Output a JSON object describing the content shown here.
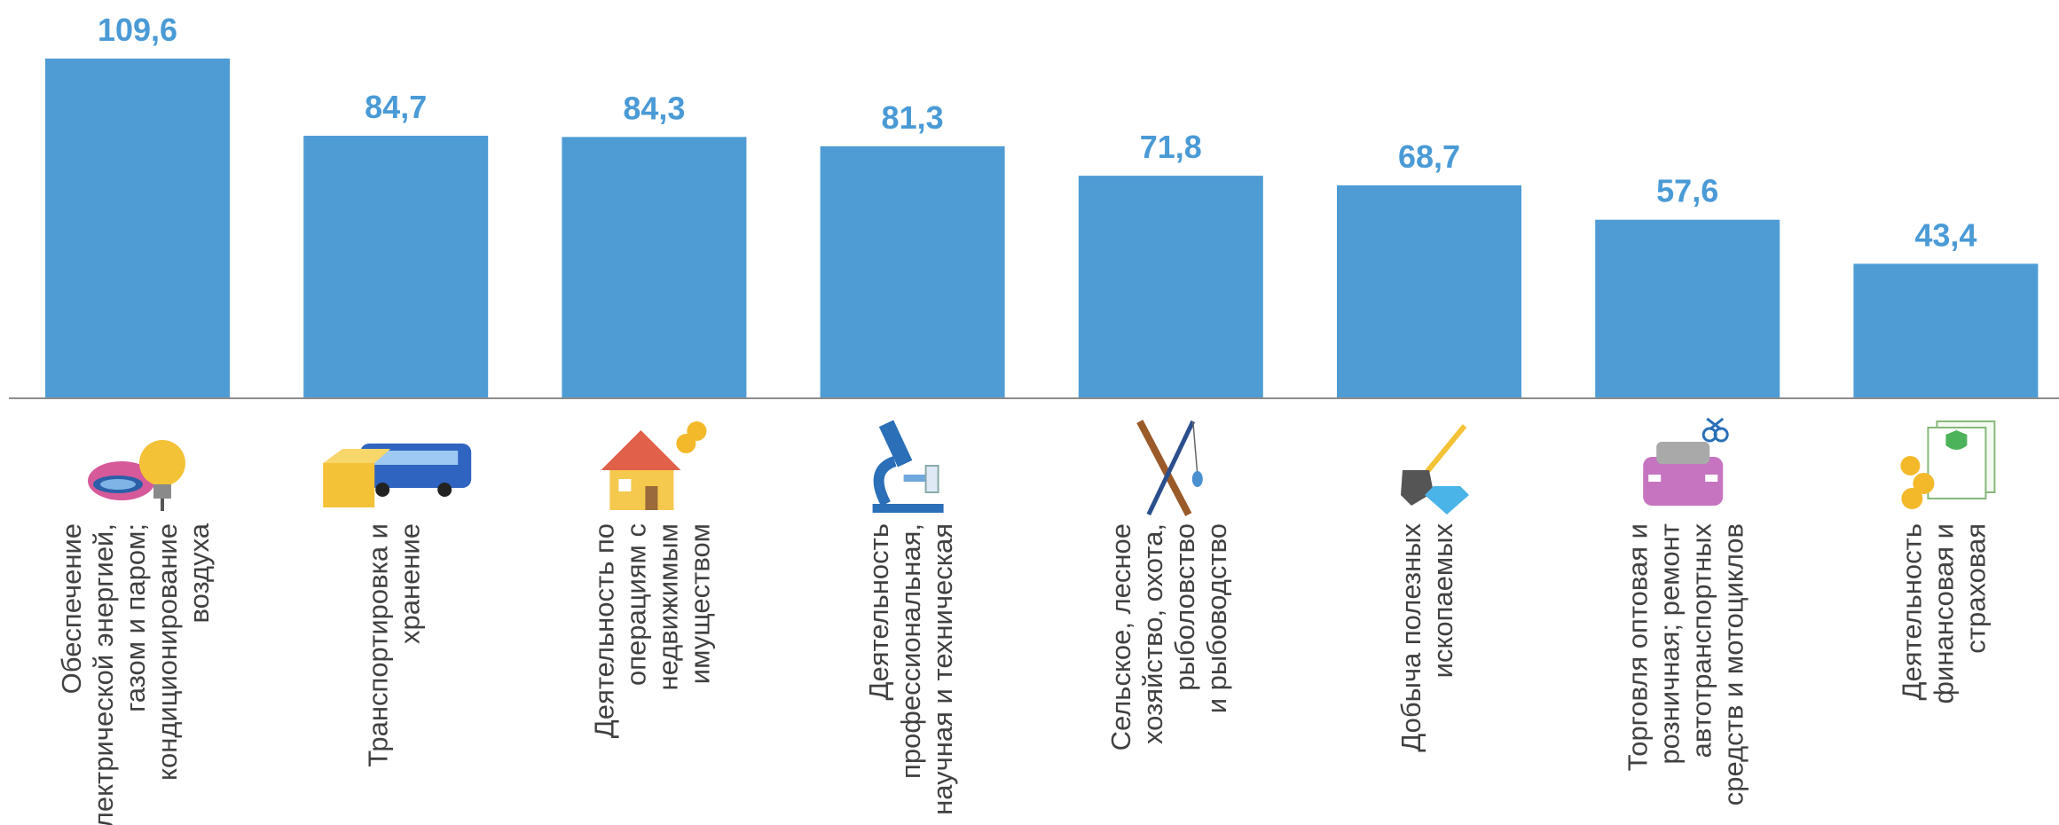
{
  "chart_data": {
    "type": "bar",
    "title": "",
    "xlabel": "",
    "ylabel": "",
    "ylim": [
      0,
      115
    ],
    "grid": false,
    "legend": "none",
    "bar_color": "#4f9cd5",
    "label_color": "#4a9ad6",
    "categories": [
      [
        "Обеспечение",
        "электрической энергией,",
        "газом и паром;",
        "кондиционирование",
        "воздуха"
      ],
      [
        "Транспортировка  и",
        "хранение"
      ],
      [
        "Деятельность по",
        "операциям с",
        "недвижимым",
        "имуществом"
      ],
      [
        "Деятельность",
        "профессиональная,",
        "научная и техническая"
      ],
      [
        "Сельское, лесное",
        "хозяйство, охота,",
        "рыболовство",
        "и рыбоводство"
      ],
      [
        "Добыча полезных",
        "ископаемых"
      ],
      [
        "Торговля оптовая и",
        "розничная; ремонт",
        "автотранспортных",
        "средств и мотоциклов"
      ],
      [
        "Деятельность",
        "финансовая и",
        "страховая"
      ]
    ],
    "values": [
      109.6,
      84.7,
      84.3,
      81.3,
      71.8,
      68.7,
      57.6,
      43.4
    ],
    "value_labels": [
      "109,6",
      "84,7",
      "84,3",
      "81,3",
      "71,8",
      "68,7",
      "57,6",
      "43,4"
    ],
    "icons": [
      "gas-flame-lightbulb-icon",
      "truck-box-icon",
      "house-coins-icon",
      "microscope-icon",
      "fishing-rod-rifle-icon",
      "shovel-diamond-icon",
      "car-scissors-icon",
      "document-coins-icon"
    ]
  }
}
